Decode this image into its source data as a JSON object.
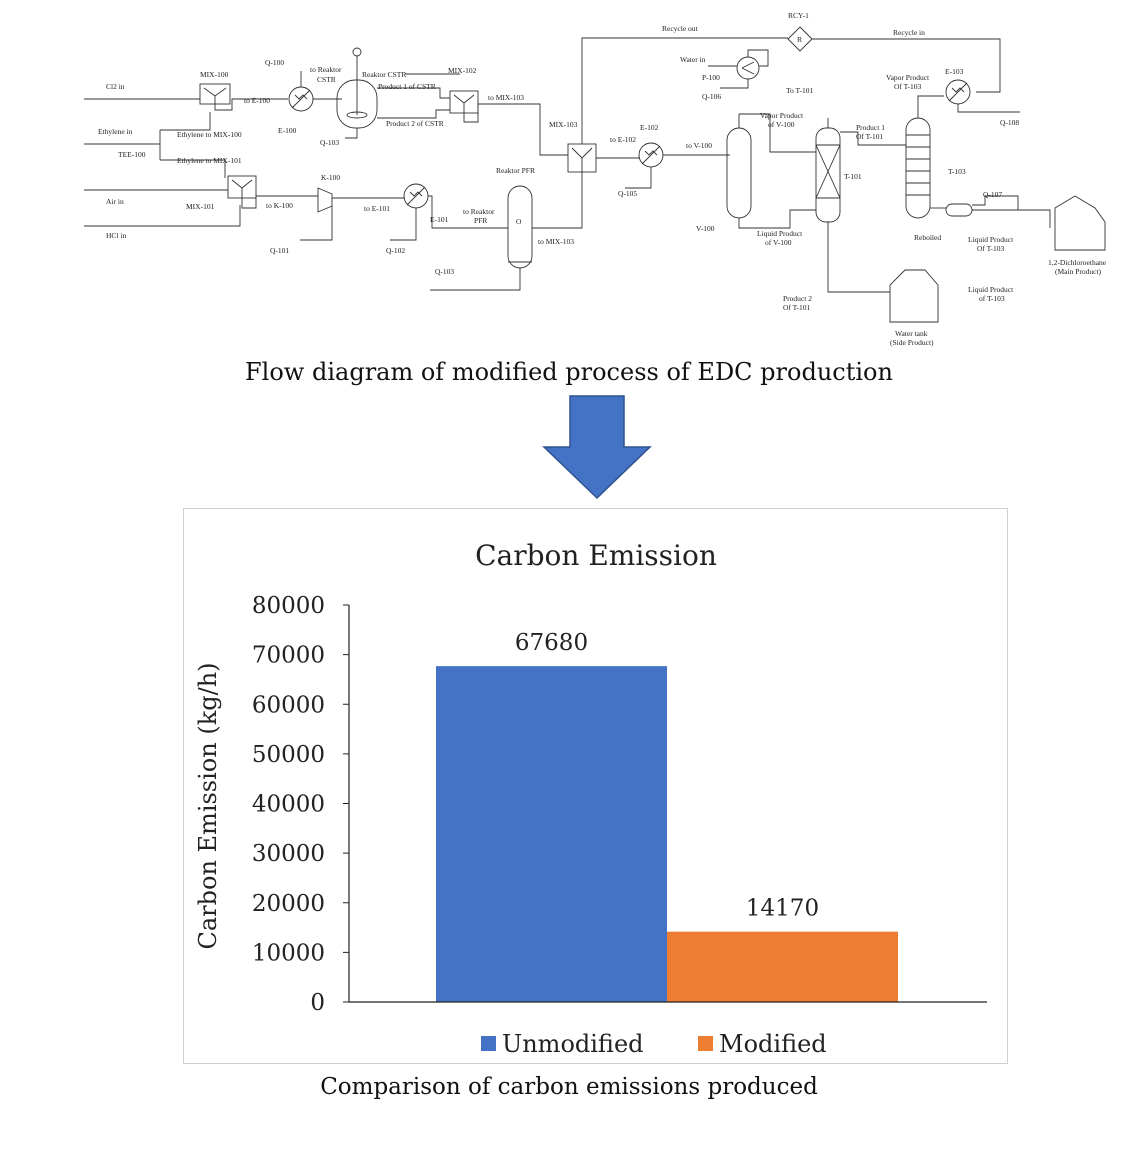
{
  "flow": {
    "labels": {
      "cl2_in": "Cl2 in",
      "ethylene_in": "Ethylene in",
      "tee100": "TEE-100",
      "air_in": "Air in",
      "hcl_in": "HCl in",
      "mix100": "MIX-100",
      "mix101": "MIX-101",
      "eth_mix100": "Ethylene to MIX-100",
      "eth_mix101": "Ethylene to MIX-101",
      "to_e100": "to E-100",
      "e100": "E-100",
      "q100": "Q-100",
      "to_reaktor_cstr": "to Reaktor",
      "to_reaktor_cstr2": "CSTR",
      "reaktor_cstr": "Reaktor CSTR",
      "product1_cstr": "Product 1 of CSTR",
      "product2_cstr": "Product 2 of CSTR",
      "q103a": "Q-103",
      "mix102": "MIX-102",
      "to_mix103a": "to MIX-103",
      "mix103": "MIX-103",
      "to_k100": "to K-100",
      "k100": "K-100",
      "q101": "Q-101",
      "to_e101": "to E-101",
      "e101": "E-101",
      "q102": "Q-102",
      "to_reaktor_pfr": "to Reaktor",
      "to_reaktor_pfr2": "PFR",
      "reaktor_pfr": "Reaktor PFR",
      "q103b": "Q-103",
      "to_mix103b": "to MIX-103",
      "recycle_out": "Recycle out",
      "rcy1": "RCY-1",
      "r": "R",
      "recycle_in": "Recycle in",
      "water_in": "Water in",
      "p100": "P-100",
      "q106": "Q-106",
      "to_t101": "To T-101",
      "to_e102": "to E-102",
      "e102": "E-102",
      "q105": "Q-105",
      "to_v100": "to V-100",
      "vapor_v100a": "Vapor Product",
      "vapor_v100b": "of V-100",
      "v100": "V-100",
      "liq_v100a": "Liquid Product",
      "liq_v100b": "of V-100",
      "t101": "T-101",
      "prod1_t101a": "Product 1",
      "prod1_t101b": "Of T-101",
      "prod2_t101a": "Product 2",
      "prod2_t101b": "Of T-101",
      "vapor_t103a": "Vapor Product",
      "vapor_t103b": "Of T-103",
      "e103": "E-103",
      "q108": "Q-108",
      "t103": "T-103",
      "q107": "Q-107",
      "reboiled": "Reboiled",
      "liq_t103a": "Liquid Product",
      "liq_t103b": "Of T-103",
      "liq2_t103a": "Liquid Product",
      "liq2_t103b": "of T-103",
      "edc_a": "1,2-Dichloroethane",
      "edc_b": "(Main Product)",
      "water_tank_a": "Water tank",
      "water_tank_b": "(Side Product)",
      "pfr_symbol": "O"
    }
  },
  "captions": {
    "flow": "Flow diagram of modified process of EDC production",
    "chart": "Comparison of carbon emissions produced"
  },
  "colors": {
    "arrow": "#4472C4",
    "arrow_border": "#2F528F",
    "unmodified": "#4472C4",
    "modified": "#ED7D31"
  },
  "chart_data": {
    "type": "bar",
    "title": "Carbon Emission",
    "xlabel": "",
    "ylabel": "Carbon Emission (kg/h)",
    "ylim": [
      0,
      80000
    ],
    "yticks": [
      "0",
      "10000",
      "20000",
      "30000",
      "40000",
      "50000",
      "60000",
      "70000",
      "80000"
    ],
    "grid": false,
    "legend_position": "bottom",
    "categories": [
      ""
    ],
    "series": [
      {
        "name": "Unmodified",
        "values": [
          67680
        ],
        "color": "#4472C4",
        "label": "67680"
      },
      {
        "name": "Modified",
        "values": [
          14170
        ],
        "color": "#ED7D31",
        "label": "14170"
      }
    ]
  }
}
